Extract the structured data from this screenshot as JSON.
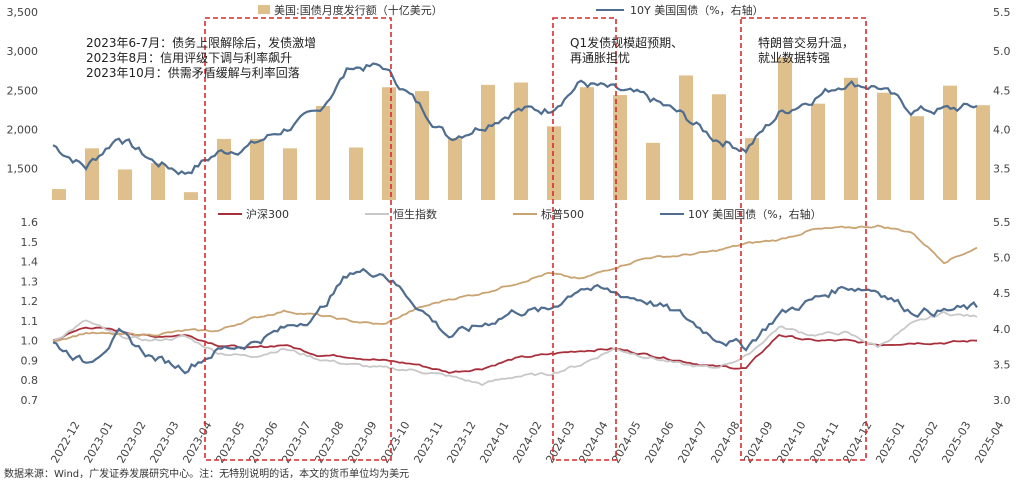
{
  "chart_data": [
    {
      "type": "bar+line",
      "legend": [
        "美国:国债月度发行额（十亿美元）",
        "10Y 美国国债（%，右轴）"
      ],
      "y_left_ticks": [
        "3,500",
        "3,000",
        "2,500",
        "2,000",
        "1,500"
      ],
      "y_right_ticks": [
        "5.5",
        "5.0",
        "4.5",
        "4.0",
        "3.5"
      ],
      "ylim_left": [
        1100,
        3500
      ],
      "ylim_right": [
        3.1,
        5.5
      ],
      "months": [
        "2022-12",
        "2023-01",
        "2023-02",
        "2023-03",
        "2023-04",
        "2023-05",
        "2023-06",
        "2023-07",
        "2023-08",
        "2023-09",
        "2023-10",
        "2023-11",
        "2023-12",
        "2024-01",
        "2024-02",
        "2024-03",
        "2024-04",
        "2024-05",
        "2024-06",
        "2024-07",
        "2024-08",
        "2024-09",
        "2024-10",
        "2024-11",
        "2024-12",
        "2025-01",
        "2025-02",
        "2025-03",
        "2025-04"
      ],
      "issuance": [
        1240,
        1760,
        1490,
        1570,
        1200,
        1880,
        1880,
        1760,
        2300,
        1770,
        2540,
        2490,
        1890,
        2570,
        2600,
        2040,
        2540,
        2440,
        1830,
        2690,
        2450,
        1890,
        2920,
        2330,
        2660,
        2470,
        2170,
        2560,
        2310
      ],
      "ust10y_monthly": [
        3.8,
        3.52,
        3.92,
        3.6,
        3.45,
        3.7,
        3.8,
        4.0,
        4.2,
        4.8,
        4.8,
        4.35,
        3.9,
        4.05,
        4.25,
        4.25,
        4.6,
        4.5,
        4.4,
        4.2,
        3.9,
        3.75,
        4.2,
        4.4,
        4.6,
        4.55,
        4.25,
        4.25,
        4.3
      ],
      "annotations": [
        "2023年6-7月：债务上限解除后，发债激增",
        "2023年8月：信用评级下调与利率飙升",
        "2023年10月：供需矛盾缓解与利率回落",
        "Q1发债规模超预期、",
        "再通胀担忧",
        "特朗普交易升温，",
        "就业数据转强"
      ]
    },
    {
      "type": "line",
      "legend": [
        "沪深300",
        "恒生指数",
        "标普500",
        "10Y 美国国债（%，右轴）"
      ],
      "y_left_ticks": [
        "1.6",
        "1.5",
        "1.4",
        "1.3",
        "1.2",
        "1.1",
        "1.0",
        "0.9",
        "0.8",
        "0.7"
      ],
      "y_right_ticks": [
        "5.5",
        "5.0",
        "4.5",
        "4.0",
        "3.5",
        "3.0"
      ],
      "ylim_left": [
        0.7,
        1.6
      ],
      "ylim_right": [
        3.0,
        5.5
      ],
      "x_tick_labels": [
        "2022-12",
        "2023-01",
        "2023-02",
        "2023-03",
        "2023-04",
        "2023-05",
        "2023-06",
        "2023-07",
        "2023-08",
        "2023-09",
        "2023-10",
        "2023-11",
        "2023-12",
        "2024-01",
        "2024-02",
        "2024-03",
        "2024-04",
        "2024-05",
        "2024-06",
        "2024-07",
        "2024-08",
        "2024-09",
        "2024-10",
        "2024-11",
        "2024-12",
        "2025-01",
        "2025-02",
        "2025-03",
        "2025-04"
      ],
      "series": [
        {
          "name": "沪深300",
          "color": "#a8303c",
          "values": [
            1.0,
            1.07,
            1.05,
            1.02,
            1.03,
            0.98,
            0.96,
            0.98,
            0.93,
            0.92,
            0.9,
            0.88,
            0.84,
            0.86,
            0.91,
            0.93,
            0.95,
            0.96,
            0.93,
            0.9,
            0.87,
            0.86,
            1.03,
            1.0,
            1.0,
            0.98,
            0.99,
            0.99,
            1.0
          ]
        },
        {
          "name": "恒生指数",
          "color": "#c8c8c8",
          "values": [
            1.0,
            1.1,
            1.02,
            1.0,
            1.02,
            0.94,
            0.92,
            0.96,
            0.91,
            0.88,
            0.86,
            0.85,
            0.82,
            0.78,
            0.82,
            0.83,
            0.88,
            0.96,
            0.92,
            0.88,
            0.86,
            0.92,
            1.07,
            1.03,
            1.04,
            0.97,
            1.08,
            1.14,
            1.12
          ]
        },
        {
          "name": "标普500",
          "color": "#c9a472",
          "values": [
            1.0,
            1.04,
            1.03,
            1.03,
            1.05,
            1.05,
            1.11,
            1.15,
            1.13,
            1.1,
            1.08,
            1.16,
            1.21,
            1.24,
            1.29,
            1.34,
            1.31,
            1.37,
            1.42,
            1.43,
            1.45,
            1.49,
            1.51,
            1.56,
            1.57,
            1.58,
            1.55,
            1.4,
            1.47
          ]
        },
        {
          "name": "10Y 美国国债（%，右轴）",
          "color": "#4f6d8f",
          "axis": "right",
          "values": [
            3.8,
            3.52,
            3.92,
            3.6,
            3.45,
            3.7,
            3.8,
            4.0,
            4.2,
            4.8,
            4.8,
            4.35,
            3.9,
            4.05,
            4.25,
            4.25,
            4.6,
            4.5,
            4.4,
            4.2,
            3.9,
            3.75,
            4.2,
            4.4,
            4.6,
            4.55,
            4.25,
            4.25,
            4.3
          ]
        }
      ]
    }
  ],
  "source_note": "数据来源：Wind，广发证券发展研究中心。注：无特别说明的话，本文的货币单位均为美元",
  "colors": {
    "bar": "#dfc08c",
    "box": "#d62c2c",
    "grid": "#888888"
  }
}
